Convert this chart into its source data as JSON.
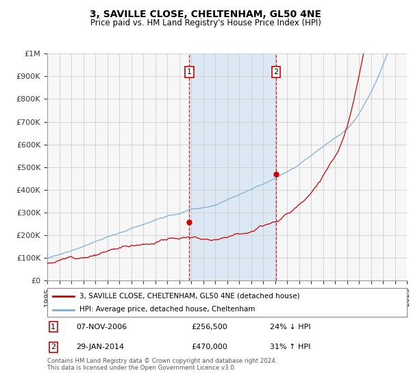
{
  "title": "3, SAVILLE CLOSE, CHELTENHAM, GL50 4NE",
  "subtitle": "Price paid vs. HM Land Registry's House Price Index (HPI)",
  "x_start_year": 1995,
  "x_end_year": 2025,
  "y_min": 0,
  "y_max": 1000000,
  "y_ticks": [
    0,
    100000,
    200000,
    300000,
    400000,
    500000,
    600000,
    700000,
    800000,
    900000,
    1000000
  ],
  "y_tick_labels": [
    "£0",
    "£100K",
    "£200K",
    "£300K",
    "£400K",
    "£500K",
    "£600K",
    "£700K",
    "£800K",
    "£900K",
    "£1M"
  ],
  "hpi_color": "#7bafd4",
  "price_color": "#cc0000",
  "transaction1_year": 2006.85,
  "transaction1_price": 256500,
  "transaction2_year": 2014.08,
  "transaction2_price": 470000,
  "legend_line1": "3, SAVILLE CLOSE, CHELTENHAM, GL50 4NE (detached house)",
  "legend_line2": "HPI: Average price, detached house, Cheltenham",
  "footnote": "Contains HM Land Registry data © Crown copyright and database right 2024.\nThis data is licensed under the Open Government Licence v3.0.",
  "background_color": "#ffffff",
  "plot_background": "#f7f7f7",
  "grid_color": "#cccccc",
  "highlight_color": "#dce9f5"
}
